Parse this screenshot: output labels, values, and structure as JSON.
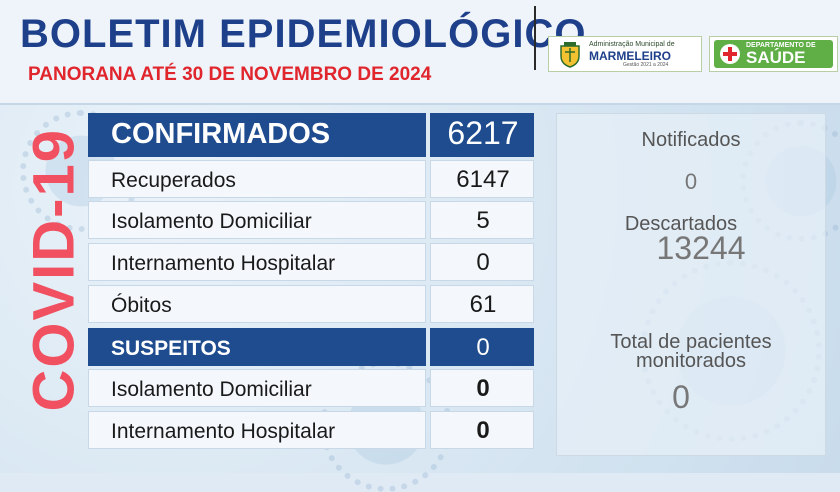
{
  "header": {
    "title": "BOLETIM EPIDEMIOLÓGICO",
    "subtitle": "PANORANA ATÉ 30 DE NOVEMBRO DE 2024"
  },
  "logos": {
    "municipal": {
      "line1": "Administração Municipal de",
      "line2": "MARMELEIRO",
      "line3": "Gestão 2021 a 2024"
    },
    "saude": {
      "dept": "DEPARTAMENTO DE",
      "word": "SAÚDE"
    }
  },
  "side_label": "COVID-19",
  "table": {
    "confirmados": {
      "label": "CONFIRMADOS",
      "value": "6217"
    },
    "recuperados": {
      "label": "Recuperados",
      "value": "6147"
    },
    "isolamento_conf": {
      "label": "Isolamento Domiciliar",
      "value": "5"
    },
    "internamento_conf": {
      "label": "Internamento Hospitalar",
      "value": "0"
    },
    "obitos": {
      "label": "Óbitos",
      "value": "61"
    },
    "suspeitos": {
      "label": "SUSPEITOS",
      "value": "0"
    },
    "isolamento_susp": {
      "label": "Isolamento Domiciliar",
      "value": "0"
    },
    "internamento_susp": {
      "label": "Internamento Hospitalar",
      "value": "0"
    }
  },
  "panel": {
    "notificados": {
      "label": "Notificados",
      "value": "0"
    },
    "descartados": {
      "label": "Descartados",
      "value": "13244"
    },
    "monitorados": {
      "label_line1": "Total de pacientes",
      "label_line2": "monitorados",
      "value": "0"
    }
  },
  "colors": {
    "title_blue": "#1e3f8a",
    "subtitle_red": "#e0262c",
    "header_row_blue": "#1e4c8f",
    "covid_pink": "#f05060"
  }
}
